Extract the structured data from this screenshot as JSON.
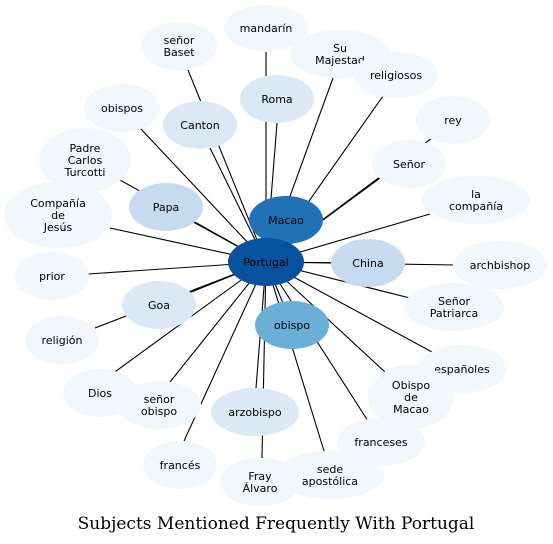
{
  "title": "Subjects Mentioned Frequently With Portugal",
  "colors": {
    "center": "#08519c",
    "strong": "#2171b5",
    "medium": "#6baed6",
    "light": "#c6dbef",
    "pale": "#dbe9f6",
    "faint": "#f2f7fd",
    "edge": "#000000",
    "text": "#000000"
  },
  "center": {
    "id": "portugal",
    "label": "Portugal"
  },
  "nodes": [
    {
      "id": "mandarin",
      "label": "mandarín",
      "weight": "faint"
    },
    {
      "id": "senor-baset",
      "label": "señor\nBaset",
      "weight": "faint"
    },
    {
      "id": "su-majestad",
      "label": "Su\nMajestad",
      "weight": "faint"
    },
    {
      "id": "religiosos",
      "label": "religiosos",
      "weight": "faint"
    },
    {
      "id": "obispos",
      "label": "obispos",
      "weight": "faint"
    },
    {
      "id": "roma",
      "label": "Roma",
      "weight": "pale"
    },
    {
      "id": "canton",
      "label": "Canton",
      "weight": "pale"
    },
    {
      "id": "rey",
      "label": "rey",
      "weight": "faint"
    },
    {
      "id": "padre-carlos",
      "label": "Padre\nCarlos\nTurcotti",
      "weight": "faint"
    },
    {
      "id": "senor",
      "label": "Señor",
      "weight": "faint"
    },
    {
      "id": "macao",
      "label": "Macao",
      "weight": "strong"
    },
    {
      "id": "la-compania",
      "label": "la\ncompañía",
      "weight": "faint"
    },
    {
      "id": "papa",
      "label": "Papa",
      "weight": "light"
    },
    {
      "id": "compania-jesus",
      "label": "Compañía\nde\nJesús",
      "weight": "faint"
    },
    {
      "id": "china",
      "label": "China",
      "weight": "light"
    },
    {
      "id": "archbishop",
      "label": "archbishop",
      "weight": "faint"
    },
    {
      "id": "prior",
      "label": "prior",
      "weight": "faint"
    },
    {
      "id": "goa",
      "label": "Goa",
      "weight": "pale"
    },
    {
      "id": "senor-patriarca",
      "label": "Señor\nPatriarca",
      "weight": "faint"
    },
    {
      "id": "obispo",
      "label": "obispo",
      "weight": "medium"
    },
    {
      "id": "religion",
      "label": "religión",
      "weight": "faint"
    },
    {
      "id": "espanoles",
      "label": "españoles",
      "weight": "faint"
    },
    {
      "id": "obispo-macao",
      "label": "Obispo\nde\nMacao",
      "weight": "faint"
    },
    {
      "id": "dios",
      "label": "Dios",
      "weight": "faint"
    },
    {
      "id": "senor-obispo",
      "label": "señor\nobispo",
      "weight": "faint"
    },
    {
      "id": "arzobispo",
      "label": "arzobispo",
      "weight": "pale"
    },
    {
      "id": "franceses",
      "label": "franceses",
      "weight": "faint"
    },
    {
      "id": "frances",
      "label": "francés",
      "weight": "faint"
    },
    {
      "id": "fray-alvaro",
      "label": "Fray\nÁlvaro",
      "weight": "faint"
    },
    {
      "id": "sede-apostolica",
      "label": "sede\napostólica",
      "weight": "faint"
    }
  ]
}
